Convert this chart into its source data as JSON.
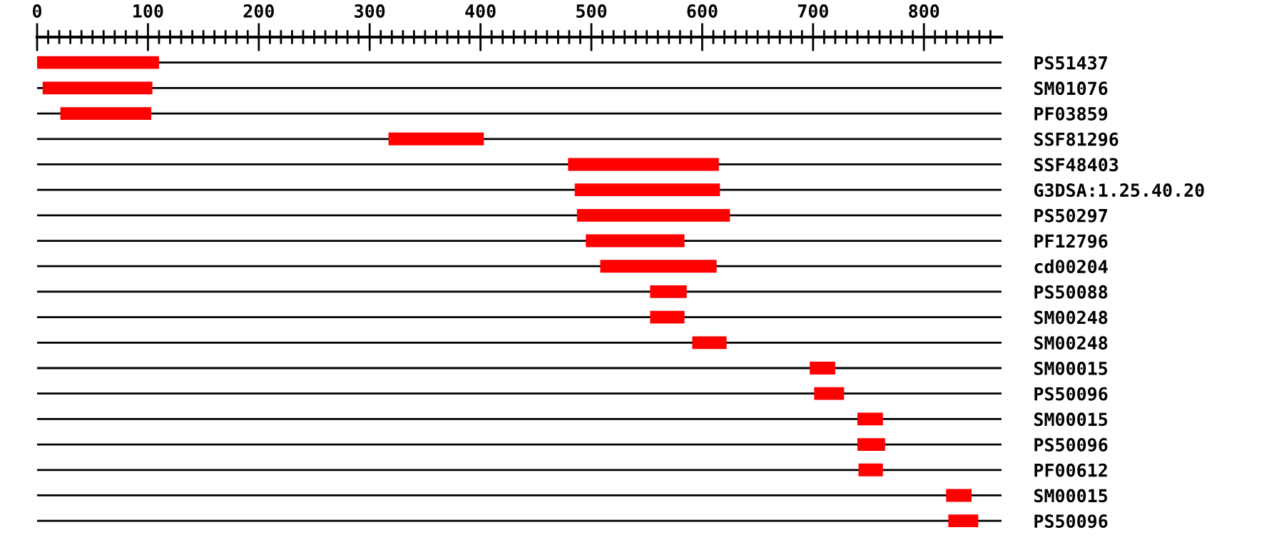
{
  "chart_data": {
    "type": "bar",
    "orientation": "horizontal",
    "categories": [
      "PS51437",
      "SM01076",
      "PF03859",
      "SSF81296",
      "SSF48403",
      "G3DSA:1.25.40.20",
      "PS50297",
      "PF12796",
      "cd00204",
      "PS50088",
      "SM00248",
      "SM00248",
      "SM00015",
      "PS50096",
      "SM00015",
      "PS50096",
      "PF00612",
      "SM00015",
      "PS50096"
    ],
    "base": [
      0,
      5,
      21,
      317,
      479,
      485,
      487,
      495,
      508,
      553,
      553,
      591,
      697,
      701,
      740,
      740,
      741,
      820,
      822
    ],
    "values": [
      110,
      99,
      82,
      86,
      136,
      131,
      138,
      89,
      105,
      33,
      31,
      31,
      23,
      27,
      23,
      25,
      22,
      23,
      27
    ],
    "color": "#ff0000",
    "xlim": [
      0,
      870
    ],
    "xticks": [
      0,
      {
        "value": 10,
        "label": null
      },
      {
        "value": 20,
        "label": null
      },
      {
        "value": 30,
        "label": null
      },
      {
        "value": 40,
        "label": null
      },
      {
        "value": 50,
        "label": null
      },
      {
        "value": 60,
        "label": null
      },
      {
        "value": 70,
        "label": null
      },
      {
        "value": 80,
        "label": null
      },
      {
        "value": 90,
        "label": null
      },
      100,
      {
        "value": 110,
        "label": null
      },
      {
        "value": 120,
        "label": null
      },
      {
        "value": 130,
        "label": null
      },
      {
        "value": 140,
        "label": null
      },
      {
        "value": 150,
        "label": null
      },
      {
        "value": 160,
        "label": null
      },
      {
        "value": 170,
        "label": null
      },
      {
        "value": 180,
        "label": null
      },
      {
        "value": 190,
        "label": null
      },
      200,
      {
        "value": 210,
        "label": null
      },
      {
        "value": 220,
        "label": null
      },
      {
        "value": 230,
        "label": null
      },
      {
        "value": 240,
        "label": null
      },
      {
        "value": 250,
        "label": null
      },
      {
        "value": 260,
        "label": null
      },
      {
        "value": 270,
        "label": null
      },
      {
        "value": 280,
        "label": null
      },
      {
        "value": 290,
        "label": null
      },
      300,
      {
        "value": 310,
        "label": null
      },
      {
        "value": 320,
        "label": null
      },
      {
        "value": 330,
        "label": null
      },
      {
        "value": 340,
        "label": null
      },
      {
        "value": 350,
        "label": null
      },
      {
        "value": 360,
        "label": null
      },
      {
        "value": 370,
        "label": null
      },
      {
        "value": 380,
        "label": null
      },
      {
        "value": 390,
        "label": null
      },
      400,
      {
        "value": 410,
        "label": null
      },
      {
        "value": 420,
        "label": null
      },
      {
        "value": 430,
        "label": null
      },
      {
        "value": 440,
        "label": null
      },
      {
        "value": 450,
        "label": null
      },
      {
        "value": 460,
        "label": null
      },
      {
        "value": 470,
        "label": null
      },
      {
        "value": 480,
        "label": null
      },
      {
        "value": 490,
        "label": null
      },
      500,
      {
        "value": 510,
        "label": null
      },
      {
        "value": 520,
        "label": null
      },
      {
        "value": 530,
        "label": null
      },
      {
        "value": 540,
        "label": null
      },
      {
        "value": 550,
        "label": null
      },
      {
        "value": 560,
        "label": null
      },
      {
        "value": 570,
        "label": null
      },
      {
        "value": 580,
        "label": null
      },
      {
        "value": 590,
        "label": null
      },
      600,
      {
        "value": 610,
        "label": null
      },
      {
        "value": 620,
        "label": null
      },
      {
        "value": 630,
        "label": null
      },
      {
        "value": 640,
        "label": null
      },
      {
        "value": 650,
        "label": null
      },
      {
        "value": 660,
        "label": null
      },
      {
        "value": 670,
        "label": null
      },
      {
        "value": 680,
        "label": null
      },
      {
        "value": 690,
        "label": null
      },
      700,
      {
        "value": 710,
        "label": null
      },
      {
        "value": 720,
        "label": null
      },
      {
        "value": 730,
        "label": null
      },
      {
        "value": 740,
        "label": null
      },
      {
        "value": 750,
        "label": null
      },
      {
        "value": 760,
        "label": null
      },
      {
        "value": 770,
        "label": null
      },
      {
        "value": 780,
        "label": null
      },
      {
        "value": 790,
        "label": null
      },
      800,
      {
        "value": 810,
        "label": null
      },
      {
        "value": 820,
        "label": null
      },
      {
        "value": 830,
        "label": null
      },
      {
        "value": 840,
        "label": null
      },
      {
        "value": 850,
        "label": null
      },
      {
        "value": 860,
        "label": null
      }
    ],
    "grid": "y"
  }
}
